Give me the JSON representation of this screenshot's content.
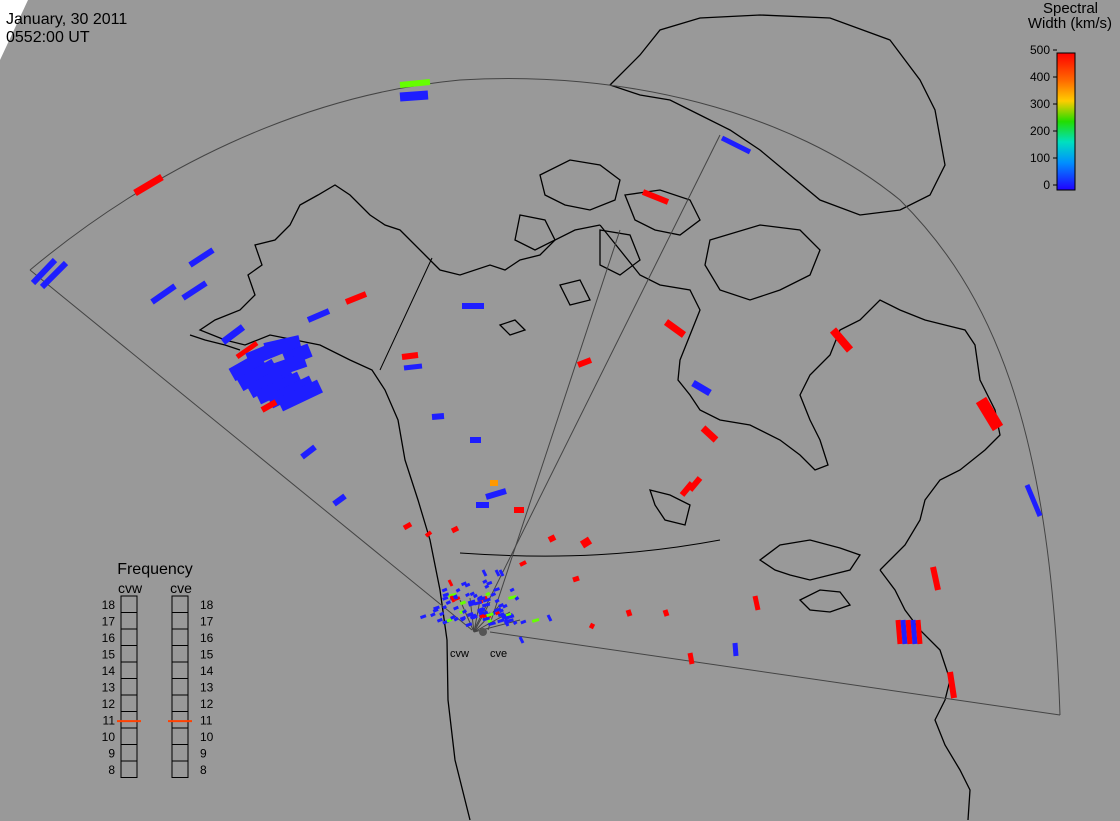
{
  "header": {
    "date": "January, 30 2011",
    "time": "0552:00 UT"
  },
  "colorbar": {
    "title_line1": "Spectral",
    "title_line2": "Width (km/s)",
    "ticks": [
      "500",
      "400",
      "300",
      "200",
      "100",
      "0"
    ],
    "colors": [
      "#ff0000",
      "#ff8c00",
      "#ffff00",
      "#00ff00",
      "#00e0e0",
      "#0040ff",
      "#2000ff"
    ]
  },
  "frequency": {
    "title": "Frequency",
    "radars": [
      {
        "name": "cvw",
        "value_mhz": 10.9
      },
      {
        "name": "cve",
        "value_mhz": 10.9
      }
    ],
    "ticks": [
      "18",
      "17",
      "16",
      "15",
      "14",
      "13",
      "12",
      "11",
      "10",
      "9",
      "8"
    ],
    "marker_color": "#ff4000"
  },
  "radar_labels": {
    "west": "cvw",
    "east": "cve"
  },
  "colors": {
    "background": "#999999",
    "coast": "#000000",
    "fov": "#444444",
    "scatter_low": "#1e1eff",
    "scatter_high": "#ff0000",
    "scatter_mid": "#ff9900",
    "scatter_green": "#66ff00"
  }
}
